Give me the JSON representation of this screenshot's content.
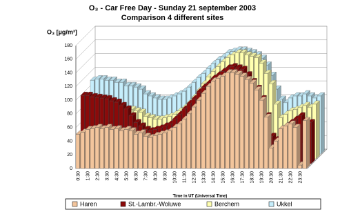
{
  "chart_data": {
    "type": "bar3d",
    "title": "O₃ - Car Free Day - Sunday 21 september 2003",
    "subtitle": "Comparison 4 different sites",
    "y_label": "O₃ [µg/m³]",
    "x_label": "Time in UT (Universal Time)",
    "categories": [
      "0:30",
      null,
      "1:30",
      null,
      "2:30",
      null,
      "3:30",
      null,
      "4:30",
      null,
      "5:30",
      null,
      "6:30",
      null,
      "7:30",
      null,
      "8:30",
      null,
      "9:30",
      null,
      "10:30",
      null,
      "11:30",
      null,
      "12:30",
      null,
      "13:30",
      null,
      "14:30",
      null,
      "15:30",
      null,
      "16:30",
      null,
      "17:30",
      null,
      "18:30",
      null,
      "19:30",
      null,
      "20:30",
      null,
      "21:30",
      null,
      "22:30",
      null,
      "23:30",
      null
    ],
    "series": [
      {
        "name": "Haren",
        "color": "#f3c59c",
        "values": [
          50,
          53,
          57,
          58,
          60,
          58,
          60,
          57,
          58,
          55,
          57,
          55,
          50,
          52,
          47,
          45,
          48,
          50,
          52,
          55,
          60,
          65,
          72,
          80,
          90,
          100,
          110,
          120,
          128,
          132,
          135,
          140,
          140,
          138,
          135,
          130,
          125,
          115,
          100,
          75,
          30,
          40,
          58,
          62,
          65,
          60,
          5,
          70
        ]
      },
      {
        "name": "St.-Lambr.-Woluwe",
        "color": "#8b0a0a",
        "values": [
          100,
          100,
          98,
          97,
          96,
          95,
          92,
          90,
          85,
          80,
          70,
          60,
          55,
          50,
          48,
          50,
          52,
          55,
          58,
          65,
          72,
          80,
          88,
          95,
          105,
          112,
          118,
          125,
          130,
          135,
          140,
          142,
          140,
          138,
          130,
          120,
          110,
          95,
          70,
          40,
          35,
          50,
          55,
          60,
          65,
          70,
          30,
          60
        ]
      },
      {
        "name": "Berchem",
        "color": "#ffffb0",
        "values": [
          60,
          60,
          62,
          62,
          60,
          62,
          65,
          68,
          70,
          72,
          70,
          68,
          62,
          60,
          58,
          58,
          60,
          62,
          65,
          70,
          75,
          82,
          90,
          100,
          110,
          120,
          128,
          135,
          142,
          148,
          152,
          155,
          155,
          152,
          150,
          148,
          140,
          125,
          110,
          80,
          60,
          65,
          70,
          72,
          75,
          78,
          75,
          80
        ]
      },
      {
        "name": "Ukkel",
        "color": "#c6eefc",
        "values": [
          108,
          110,
          110,
          108,
          108,
          105,
          105,
          100,
          100,
          98,
          95,
          88,
          85,
          82,
          80,
          80,
          82,
          85,
          88,
          92,
          98,
          105,
          112,
          118,
          125,
          132,
          138,
          142,
          148,
          150,
          152,
          152,
          150,
          148,
          145,
          140,
          130,
          115,
          95,
          80,
          75,
          82,
          85,
          85,
          88,
          85,
          82,
          85
        ]
      }
    ],
    "ylim": [
      0,
      180
    ],
    "yticks": [
      0,
      20,
      40,
      60,
      80,
      100,
      120,
      140,
      160,
      180
    ],
    "grid": true
  }
}
